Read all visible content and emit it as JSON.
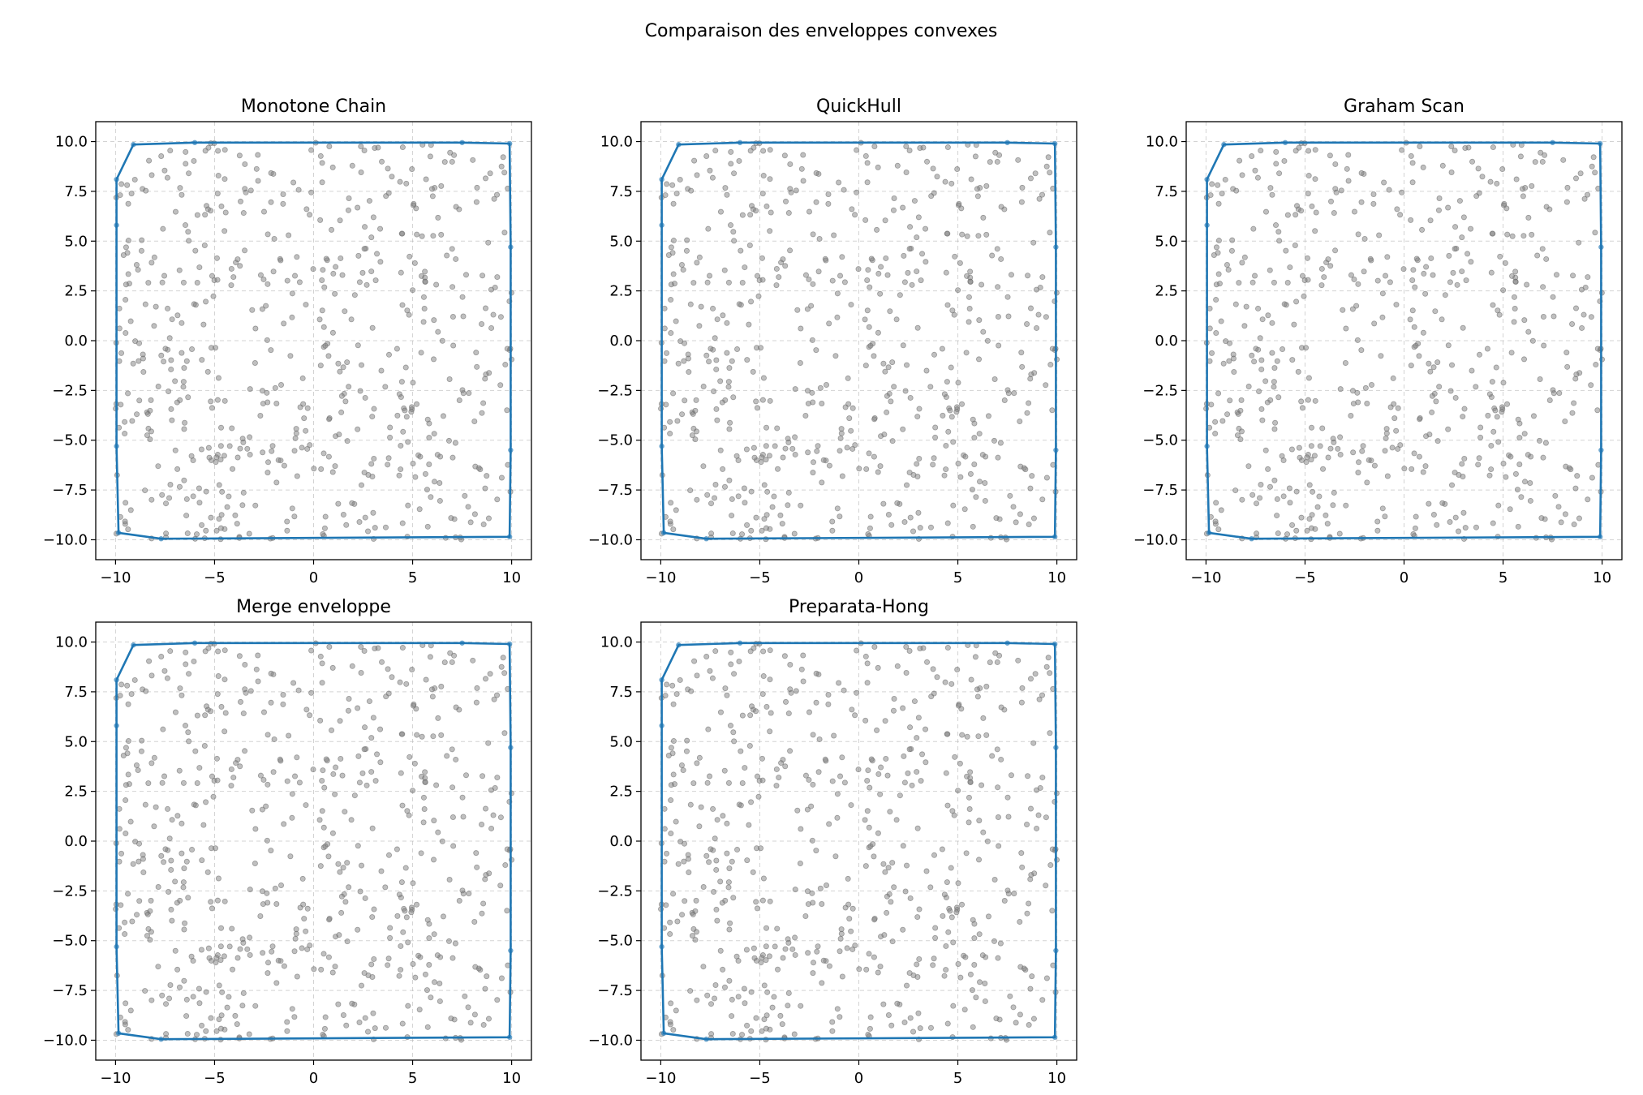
{
  "figure": {
    "suptitle": "Comparaison des enveloppes convexes"
  },
  "colors": {
    "hull": "#1f77b4",
    "points": "#808080",
    "grid": "#b0b0b0"
  },
  "chart_data": [
    {
      "type": "scatter",
      "title": "Monotone Chain",
      "xlim": [
        -11,
        11
      ],
      "ylim": [
        -11,
        11
      ],
      "xticks": [
        -10,
        -5,
        0,
        5,
        10
      ],
      "xtick_labels": [
        "−10",
        "−5",
        "0",
        "5",
        "10"
      ],
      "yticks": [
        10.0,
        7.5,
        5.0,
        2.5,
        0.0,
        -2.5,
        -5.0,
        -7.5,
        -10.0
      ],
      "ytick_labels": [
        "10.0",
        "7.5",
        "5.0",
        "2.5",
        "0.0",
        "−2.5",
        "−5.0",
        "−7.5",
        "−10.0"
      ],
      "grid": true,
      "point_cloud": {
        "count": 600,
        "x_range": [
          -10,
          10
        ],
        "y_range": [
          -10,
          10
        ],
        "distribution": "uniform random"
      },
      "hull": [
        [
          -9.95,
          8.1
        ],
        [
          -9.1,
          9.85
        ],
        [
          -6.0,
          9.95
        ],
        [
          7.5,
          9.95
        ],
        [
          9.9,
          9.9
        ],
        [
          9.95,
          4.7
        ],
        [
          9.95,
          -5.5
        ],
        [
          9.9,
          -9.85
        ],
        [
          -7.7,
          -9.95
        ],
        [
          -9.85,
          -9.65
        ],
        [
          -9.95,
          -5.3
        ],
        [
          -9.95,
          5.8
        ]
      ]
    },
    {
      "type": "scatter",
      "title": "QuickHull",
      "xlim": [
        -11,
        11
      ],
      "ylim": [
        -11,
        11
      ],
      "xticks": [
        -10,
        -5,
        0,
        5,
        10
      ],
      "xtick_labels": [
        "−10",
        "−5",
        "0",
        "5",
        "10"
      ],
      "yticks": [
        10.0,
        7.5,
        5.0,
        2.5,
        0.0,
        -2.5,
        -5.0,
        -7.5,
        -10.0
      ],
      "ytick_labels": [
        "10.0",
        "7.5",
        "5.0",
        "2.5",
        "0.0",
        "−2.5",
        "−5.0",
        "−7.5",
        "−10.0"
      ],
      "grid": true,
      "point_cloud": {
        "count": 600,
        "x_range": [
          -10,
          10
        ],
        "y_range": [
          -10,
          10
        ],
        "distribution": "uniform random"
      },
      "hull": [
        [
          -9.95,
          8.1
        ],
        [
          -9.1,
          9.85
        ],
        [
          -6.0,
          9.95
        ],
        [
          7.5,
          9.95
        ],
        [
          9.9,
          9.9
        ],
        [
          9.95,
          4.7
        ],
        [
          9.95,
          -5.5
        ],
        [
          9.9,
          -9.85
        ],
        [
          -7.7,
          -9.95
        ],
        [
          -9.85,
          -9.65
        ],
        [
          -9.95,
          -5.3
        ],
        [
          -9.95,
          5.8
        ]
      ]
    },
    {
      "type": "scatter",
      "title": "Graham Scan",
      "xlim": [
        -11,
        11
      ],
      "ylim": [
        -11,
        11
      ],
      "xticks": [
        -10,
        -5,
        0,
        5,
        10
      ],
      "xtick_labels": [
        "−10",
        "−5",
        "0",
        "5",
        "10"
      ],
      "yticks": [
        10.0,
        7.5,
        5.0,
        2.5,
        0.0,
        -2.5,
        -5.0,
        -7.5,
        -10.0
      ],
      "ytick_labels": [
        "10.0",
        "7.5",
        "5.0",
        "2.5",
        "0.0",
        "−2.5",
        "−5.0",
        "−7.5",
        "−10.0"
      ],
      "grid": true,
      "point_cloud": {
        "count": 600,
        "x_range": [
          -10,
          10
        ],
        "y_range": [
          -10,
          10
        ],
        "distribution": "uniform random"
      },
      "hull": [
        [
          -9.95,
          8.1
        ],
        [
          -9.1,
          9.85
        ],
        [
          -6.0,
          9.95
        ],
        [
          7.5,
          9.95
        ],
        [
          9.9,
          9.9
        ],
        [
          9.95,
          4.7
        ],
        [
          9.95,
          -5.5
        ],
        [
          9.9,
          -9.85
        ],
        [
          -7.7,
          -9.95
        ],
        [
          -9.85,
          -9.65
        ],
        [
          -9.95,
          -5.3
        ],
        [
          -9.95,
          5.8
        ]
      ]
    },
    {
      "type": "scatter",
      "title": "Merge enveloppe",
      "xlim": [
        -11,
        11
      ],
      "ylim": [
        -11,
        11
      ],
      "xticks": [
        -10,
        -5,
        0,
        5,
        10
      ],
      "xtick_labels": [
        "−10",
        "−5",
        "0",
        "5",
        "10"
      ],
      "yticks": [
        10.0,
        7.5,
        5.0,
        2.5,
        0.0,
        -2.5,
        -5.0,
        -7.5,
        -10.0
      ],
      "ytick_labels": [
        "10.0",
        "7.5",
        "5.0",
        "2.5",
        "0.0",
        "−2.5",
        "−5.0",
        "−7.5",
        "−10.0"
      ],
      "grid": true,
      "point_cloud": {
        "count": 600,
        "x_range": [
          -10,
          10
        ],
        "y_range": [
          -10,
          10
        ],
        "distribution": "uniform random"
      },
      "hull": [
        [
          -9.95,
          8.1
        ],
        [
          -9.1,
          9.85
        ],
        [
          -6.0,
          9.95
        ],
        [
          7.5,
          9.95
        ],
        [
          9.9,
          9.9
        ],
        [
          9.95,
          4.7
        ],
        [
          9.95,
          -5.5
        ],
        [
          9.9,
          -9.85
        ],
        [
          -7.7,
          -9.95
        ],
        [
          -9.85,
          -9.65
        ],
        [
          -9.95,
          -5.3
        ],
        [
          -9.95,
          5.8
        ]
      ]
    },
    {
      "type": "scatter",
      "title": "Preparata-Hong",
      "xlim": [
        -11,
        11
      ],
      "ylim": [
        -11,
        11
      ],
      "xticks": [
        -10,
        -5,
        0,
        5,
        10
      ],
      "xtick_labels": [
        "−10",
        "−5",
        "0",
        "5",
        "10"
      ],
      "yticks": [
        10.0,
        7.5,
        5.0,
        2.5,
        0.0,
        -2.5,
        -5.0,
        -7.5,
        -10.0
      ],
      "ytick_labels": [
        "10.0",
        "7.5",
        "5.0",
        "2.5",
        "0.0",
        "−2.5",
        "−5.0",
        "−7.5",
        "−10.0"
      ],
      "grid": true,
      "point_cloud": {
        "count": 600,
        "x_range": [
          -10,
          10
        ],
        "y_range": [
          -10,
          10
        ],
        "distribution": "uniform random"
      },
      "hull": [
        [
          -9.95,
          8.1
        ],
        [
          -9.1,
          9.85
        ],
        [
          -6.0,
          9.95
        ],
        [
          7.5,
          9.95
        ],
        [
          9.9,
          9.9
        ],
        [
          9.95,
          4.7
        ],
        [
          9.95,
          -5.5
        ],
        [
          9.9,
          -9.85
        ],
        [
          -7.7,
          -9.95
        ],
        [
          -9.85,
          -9.65
        ],
        [
          -9.95,
          -5.3
        ],
        [
          -9.95,
          5.8
        ]
      ]
    }
  ]
}
